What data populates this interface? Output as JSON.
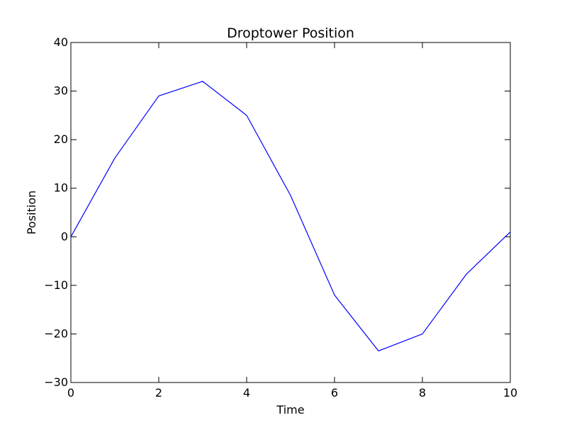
{
  "chart_data": {
    "type": "line",
    "title": "Droptower Position",
    "xlabel": "Time",
    "ylabel": "Position",
    "xlim": [
      0,
      10
    ],
    "ylim": [
      -30,
      40
    ],
    "xticks": [
      0,
      2,
      4,
      6,
      8,
      10
    ],
    "yticks": [
      -30,
      -20,
      -10,
      0,
      10,
      20,
      30,
      40
    ],
    "xtick_labels": [
      "0",
      "2",
      "4",
      "6",
      "8",
      "10"
    ],
    "ytick_labels": [
      "−30",
      "−20",
      "−10",
      "0",
      "10",
      "20",
      "30",
      "40"
    ],
    "grid": false,
    "legend": "none",
    "series": [
      {
        "color": "#0000ff",
        "x": [
          0,
          1,
          2,
          3,
          4,
          5,
          6,
          7,
          8,
          9,
          10
        ],
        "y": [
          0,
          16.2,
          29,
          32,
          25,
          8.5,
          -12,
          -23.5,
          -20,
          -7.7,
          1
        ]
      }
    ]
  }
}
